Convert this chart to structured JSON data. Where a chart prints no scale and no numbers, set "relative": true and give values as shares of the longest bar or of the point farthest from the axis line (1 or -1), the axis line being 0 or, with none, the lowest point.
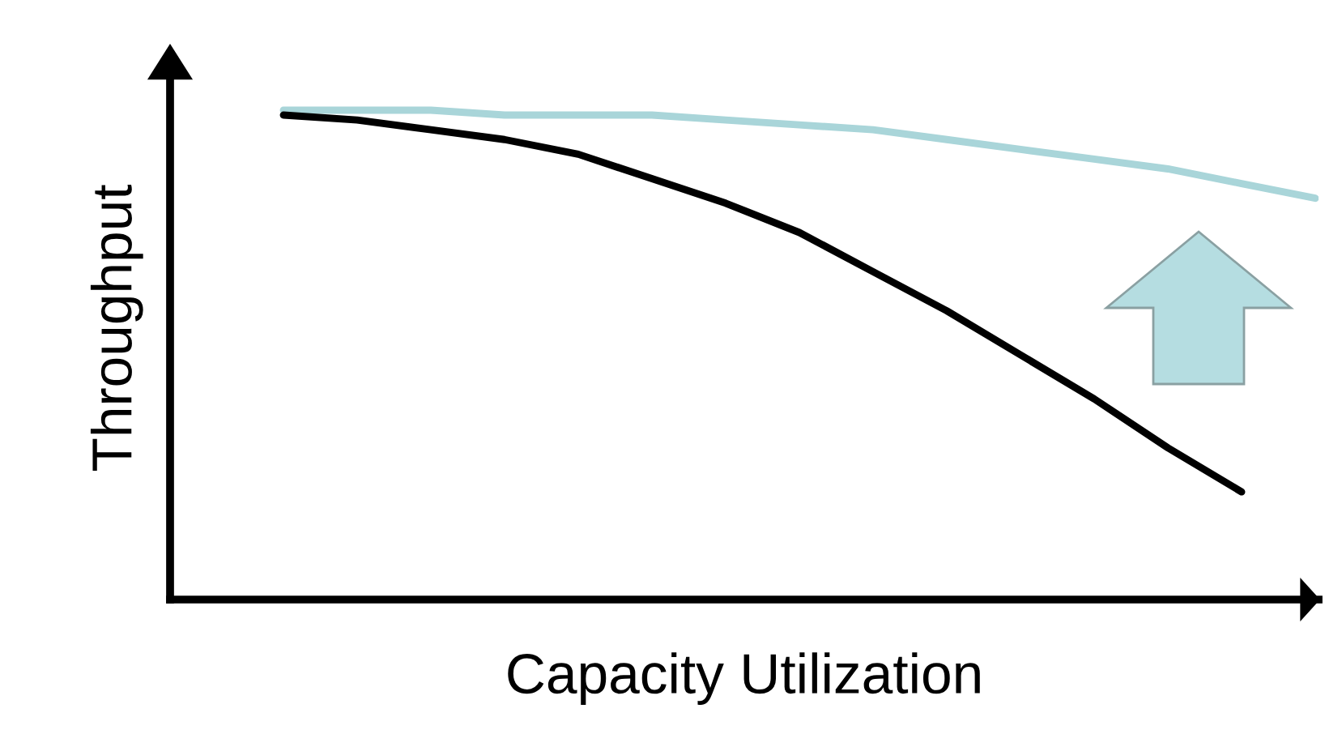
{
  "chart_data": {
    "type": "line",
    "relative": true,
    "xlabel": "Capacity Utilization",
    "ylabel": "Throughput",
    "categories": [
      null,
      null,
      null,
      null,
      null,
      null,
      null,
      null,
      null,
      null,
      null,
      null,
      null,
      null,
      null
    ],
    "series": [
      {
        "color": "#a9d5d9",
        "values": [
          1.0,
          1.0,
          1.0,
          0.99,
          0.99,
          0.99,
          0.98,
          0.97,
          0.96,
          0.94,
          0.92,
          0.9,
          0.88,
          0.85,
          0.82
        ]
      },
      {
        "color": "#000000",
        "values": [
          0.99,
          0.98,
          0.96,
          0.94,
          0.91,
          0.86,
          0.81,
          0.75,
          0.67,
          0.59,
          0.5,
          0.41,
          0.31,
          0.22,
          null
        ]
      }
    ],
    "grid": false,
    "legend": false,
    "marker": "none",
    "line_style": "solid"
  }
}
